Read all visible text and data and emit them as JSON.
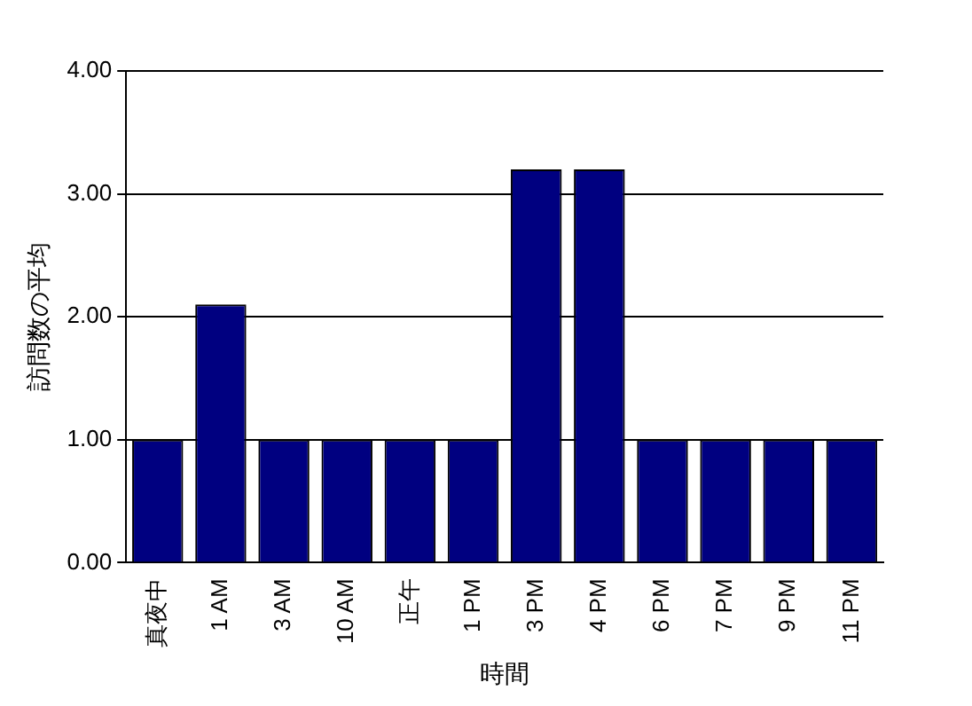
{
  "chart_data": {
    "type": "bar",
    "xlabel": "時間",
    "ylabel": "訪問数の平均",
    "categories": [
      "真夜中",
      "1 AM",
      "3 AM",
      "10 AM",
      "正午",
      "1 PM",
      "3 PM",
      "4 PM",
      "6 PM",
      "7 PM",
      "9 PM",
      "11 PM"
    ],
    "values": [
      1,
      2.1,
      1,
      1,
      1,
      1,
      3.2,
      3.2,
      1,
      1,
      1,
      1
    ],
    "color": "#000080",
    "ylim": [
      0,
      4
    ],
    "yticks": [
      {
        "value": 0,
        "label": "0.00"
      },
      {
        "value": 1,
        "label": "1.00"
      },
      {
        "value": 2,
        "label": "2.00"
      },
      {
        "value": 3,
        "label": "3.00"
      },
      {
        "value": 4,
        "label": "4.00"
      }
    ],
    "grid": "y",
    "legend": false
  }
}
